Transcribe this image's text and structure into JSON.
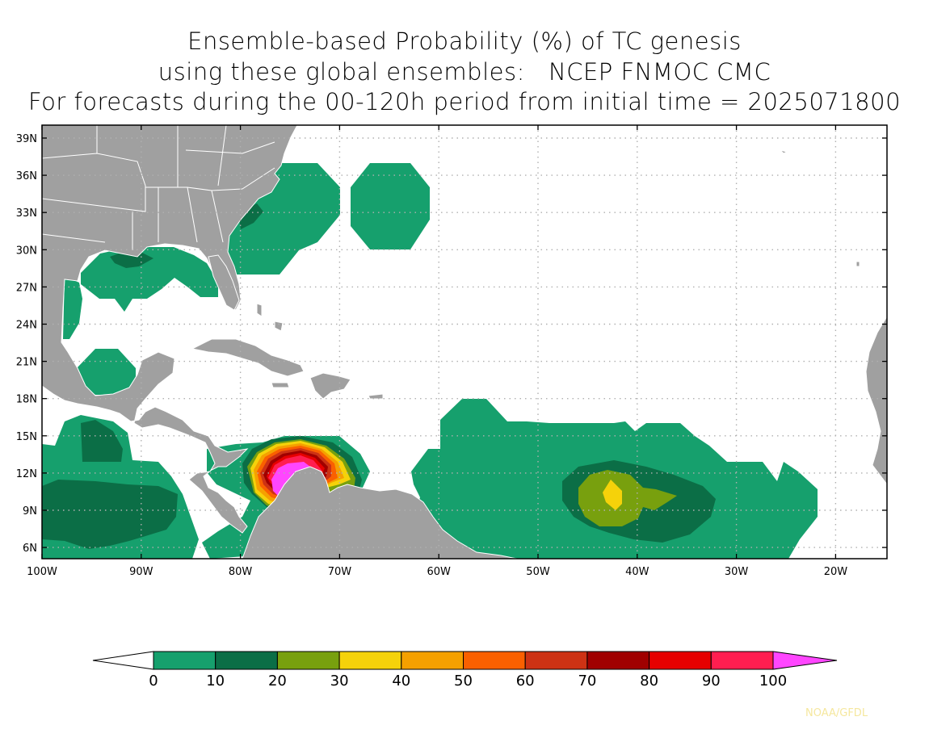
{
  "title": {
    "line1": "Ensemble-based Probability (%) of TC genesis",
    "line2": "using these global ensembles:   NCEP FNMOC CMC",
    "line3": "For forecasts during the 00-120h period from initial time = 2025071800"
  },
  "map": {
    "lat_labels": [
      "39N",
      "36N",
      "33N",
      "30N",
      "27N",
      "24N",
      "21N",
      "18N",
      "15N",
      "12N",
      "9N",
      "6N"
    ],
    "lon_labels": [
      "100W",
      "90W",
      "80W",
      "70W",
      "60W",
      "50W",
      "40W",
      "30W",
      "20W"
    ],
    "colors": {
      "land": "#a0a0a0",
      "border": "#ffffff",
      "grid": "#b0b0b0",
      "frame": "#000000"
    }
  },
  "colorbar": {
    "labels": [
      "0",
      "10",
      "20",
      "30",
      "40",
      "50",
      "60",
      "70",
      "80",
      "90",
      "100"
    ],
    "colors": [
      "#ffffff",
      "#16a06d",
      "#0b6e46",
      "#78a00e",
      "#f5d20a",
      "#f5a000",
      "#fa6000",
      "#cd3214",
      "#a00000",
      "#e60000",
      "#ff1e50",
      "#ff46ff"
    ]
  },
  "credit": "NOAA/GFDL"
}
